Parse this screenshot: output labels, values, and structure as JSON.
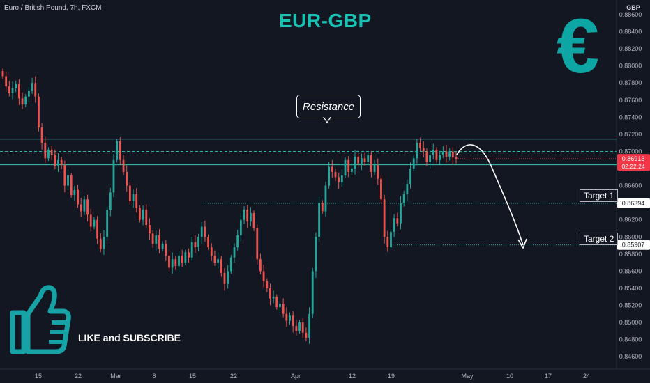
{
  "header": {
    "symbol": "Euro / British Pound, 7h, FXCM",
    "title": "EUR-GBP"
  },
  "overlay": {
    "euro_glyph": "€",
    "cta_text": "LIKE and SUBSCRIBE",
    "thumb_icon": "thumbs-up-icon",
    "resistance_label": "Resistance",
    "target1_label": "Target 1",
    "target2_label": "Target 2"
  },
  "price_axis": {
    "currency": "GBP",
    "ticks": [
      "0.88600",
      "0.88400",
      "0.88200",
      "0.88000",
      "0.87800",
      "0.87600",
      "0.87400",
      "0.87200",
      "0.87000",
      "0.86800",
      "0.86600",
      "0.86400",
      "0.86200",
      "0.86000",
      "0.85800",
      "0.85600",
      "0.85400",
      "0.85200",
      "0.85000",
      "0.84800",
      "0.84600"
    ],
    "current_price": "0.86913",
    "countdown": "02:22:24",
    "target1_value": "0.86394",
    "target2_value": "0.85907"
  },
  "time_axis": {
    "ticks": [
      "15",
      "22",
      "Mar",
      "8",
      "15",
      "22",
      "Apr",
      "12",
      "19",
      "May",
      "10",
      "17",
      "24"
    ]
  },
  "colors": {
    "background": "#131722",
    "up": "#26a69a",
    "down": "#ef5350",
    "accent": "#17c3b5",
    "levels": "#2ab3a6",
    "text": "#b2b5be"
  },
  "chart_data": {
    "type": "candlestick",
    "title": "EUR-GBP",
    "symbol": "Euro / British Pound",
    "timeframe": "7h",
    "ylabel": "GBP",
    "ylim": [
      0.8455,
      0.8875
    ],
    "x_ticks": [
      "15",
      "22",
      "Mar",
      "8",
      "15",
      "22",
      "Apr",
      "12",
      "19",
      "May",
      "10",
      "17",
      "24"
    ],
    "resistance_zone": [
      0.86845,
      0.87145
    ],
    "resistance_mid": 0.87,
    "targets": [
      {
        "label": "Target 1",
        "value": 0.86394
      },
      {
        "label": "Target 2",
        "value": 0.85907
      }
    ],
    "last_price": 0.86913,
    "closes": [
      0.8788,
      0.8776,
      0.8768,
      0.8774,
      0.8779,
      0.8762,
      0.8755,
      0.8764,
      0.8771,
      0.878,
      0.8764,
      0.8728,
      0.871,
      0.8692,
      0.8702,
      0.8696,
      0.8683,
      0.869,
      0.8684,
      0.866,
      0.8672,
      0.8649,
      0.8655,
      0.8638,
      0.863,
      0.8644,
      0.8626,
      0.8612,
      0.862,
      0.8598,
      0.8586,
      0.86,
      0.8632,
      0.8652,
      0.869,
      0.8712,
      0.869,
      0.8676,
      0.866,
      0.8642,
      0.865,
      0.8634,
      0.862,
      0.8632,
      0.8614,
      0.8604,
      0.8592,
      0.8602,
      0.8586,
      0.8592,
      0.8578,
      0.8564,
      0.8574,
      0.8566,
      0.8578,
      0.857,
      0.8582,
      0.8576,
      0.8594,
      0.8588,
      0.86,
      0.8612,
      0.86,
      0.8588,
      0.8578,
      0.857,
      0.8574,
      0.8558,
      0.8545,
      0.856,
      0.8576,
      0.8588,
      0.8602,
      0.862,
      0.8632,
      0.8618,
      0.8628,
      0.861,
      0.8574,
      0.856,
      0.8548,
      0.854,
      0.8528,
      0.853,
      0.8518,
      0.8522,
      0.851,
      0.8502,
      0.8508,
      0.8496,
      0.849,
      0.85,
      0.8488,
      0.8482,
      0.851,
      0.856,
      0.86,
      0.864,
      0.863,
      0.866,
      0.8682,
      0.8676,
      0.867,
      0.8664,
      0.8672,
      0.869,
      0.8676,
      0.868,
      0.8694,
      0.8686,
      0.8692,
      0.8688,
      0.8696,
      0.8676,
      0.8684,
      0.8668,
      0.8644,
      0.86,
      0.8588,
      0.8606,
      0.8622,
      0.8616,
      0.864,
      0.865,
      0.8662,
      0.868,
      0.8692,
      0.871,
      0.8704,
      0.87,
      0.8688,
      0.8696,
      0.8702,
      0.869,
      0.8696,
      0.87,
      0.8694,
      0.87,
      0.8693,
      0.86913
    ]
  }
}
